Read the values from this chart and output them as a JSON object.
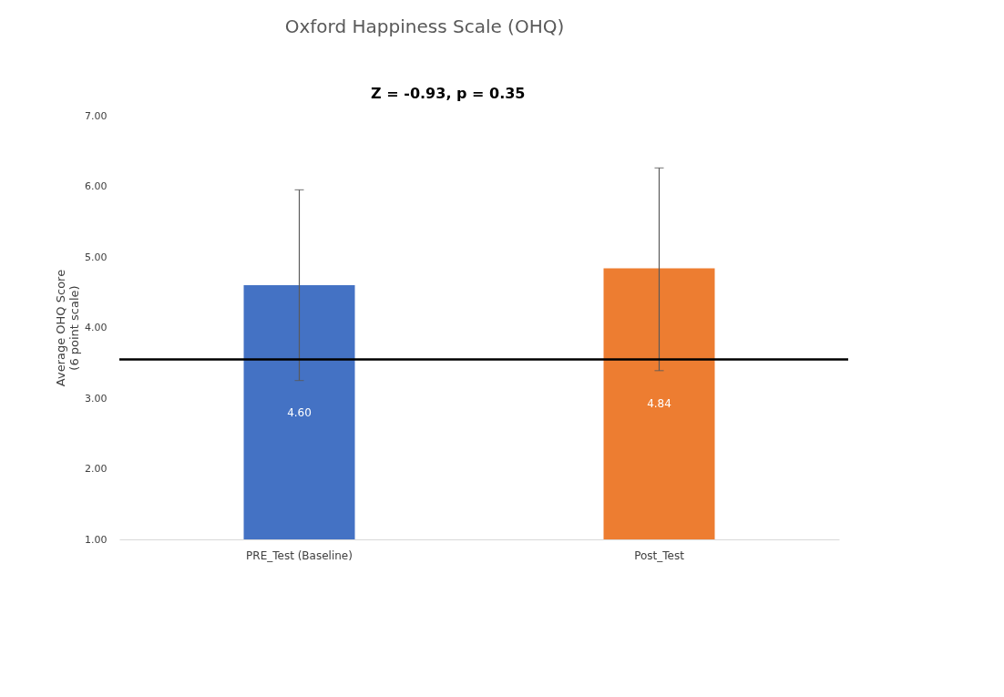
{
  "chart_data": {
    "type": "bar",
    "title": "Oxford Happiness Scale (OHQ)",
    "ylabel": "Average OHQ Score\n(6 point scale)",
    "categories": [
      "PRE_Test (Baseline)",
      "Post_Test"
    ],
    "values": [
      4.6,
      4.84
    ],
    "colors": [
      "#4472c4",
      "#ed7d31"
    ],
    "value_labels": [
      "4.60",
      "4.84"
    ],
    "errors": [
      [
        3.25,
        5.95
      ],
      [
        3.39,
        6.26
      ]
    ],
    "ylim": [
      1,
      7
    ],
    "yticks": [
      {
        "value": 1,
        "label": "1.00"
      },
      {
        "value": 2,
        "label": "2.00"
      },
      {
        "value": 3,
        "label": "3.00"
      },
      {
        "value": 4,
        "label": "4.00"
      },
      {
        "value": 5,
        "label": "5.00"
      },
      {
        "value": 6,
        "label": "6.00"
      },
      {
        "value": 7,
        "label": "7.00"
      }
    ],
    "ref_lines": [
      {
        "axis": "y",
        "value": 3.55,
        "color": "#000000"
      }
    ],
    "annotations": [
      "Z = -0.93, p = 0.35"
    ],
    "grid": false
  }
}
